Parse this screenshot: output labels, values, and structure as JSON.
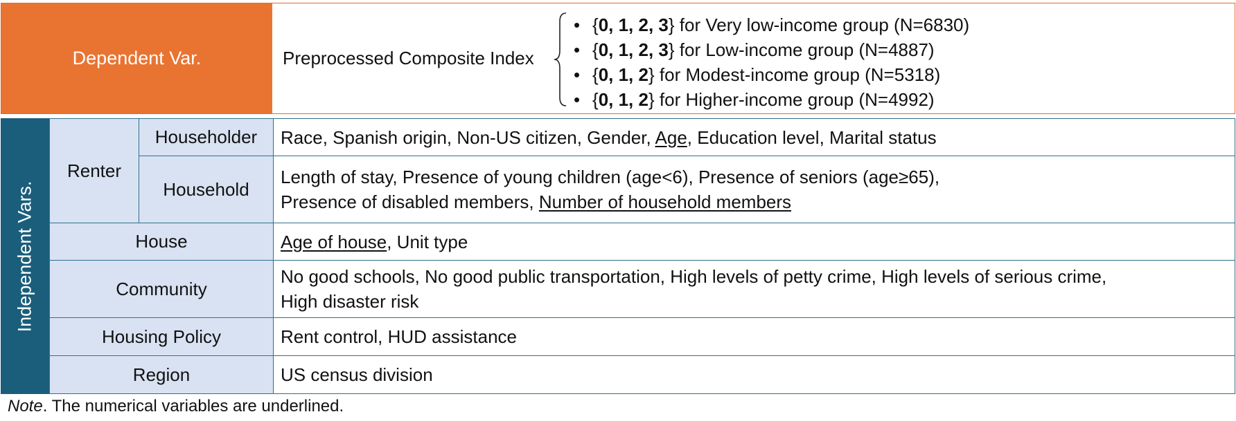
{
  "dependent": {
    "label": "Dependent Var.",
    "description": "Preprocessed Composite Index",
    "groups": [
      {
        "values": "0, 1, 2, 3",
        "text": " for Very low-income group (N=6830)"
      },
      {
        "values": "0, 1, 2, 3",
        "text": " for Low-income group (N=4887)"
      },
      {
        "values": "0, 1, 2",
        "text": " for Modest-income group (N=5318)"
      },
      {
        "values": "0, 1, 2",
        "text": " for Higher-income group (N=4992)"
      }
    ],
    "bullet": "•",
    "brace_open": "{",
    "brace_close": "}"
  },
  "independent": {
    "label": "Independent Vars.",
    "renter_label": "Renter",
    "householder": {
      "label": "Householder",
      "vars_pre": "Race, Spanish origin, Non-US citizen, Gender, ",
      "vars_underlined": "Age",
      "vars_post": ", Education level, Marital status"
    },
    "household": {
      "label": "Household",
      "line1": "Length of stay, Presence of young children (age<6), Presence of seniors (age≥65),",
      "line2_pre": "Presence of disabled members, ",
      "line2_underlined": "Number of household members"
    },
    "house": {
      "label": "House",
      "vars_underlined": "Age of house",
      "vars_post": ", Unit type"
    },
    "community": {
      "label": "Community",
      "line1": "No good schools, No good public transportation, High levels of petty crime, High levels of serious crime,",
      "line2": "High disaster risk"
    },
    "policy": {
      "label": "Housing Policy",
      "vars": "Rent control, HUD assistance"
    },
    "region": {
      "label": "Region",
      "vars": "US census division"
    }
  },
  "note": {
    "prefix": "Note",
    "text": ". The numerical variables are underlined."
  },
  "colors": {
    "dependent_fill": "#e97432",
    "independent_fill": "#1a5e7c",
    "category_fill": "#d9e2f2",
    "border": "#2d6f8c"
  }
}
